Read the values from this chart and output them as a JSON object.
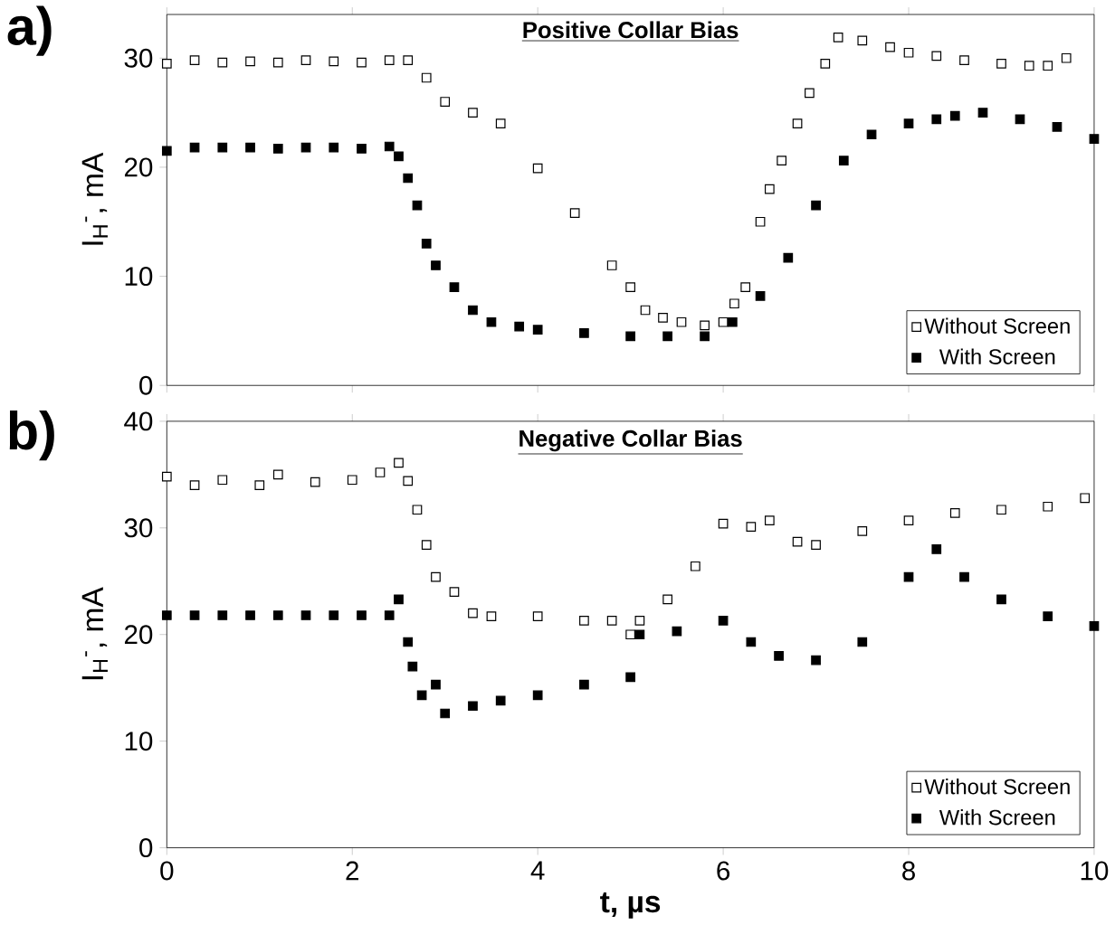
{
  "chart_data": [
    {
      "type": "scatter",
      "title": "Positive Collar Bias",
      "ylabel": "I$_{H}$$^{-}$, mA",
      "annotations": [
        "a)"
      ],
      "xlim": [
        0,
        10
      ],
      "xticks": [
        0,
        2,
        4,
        6,
        8,
        10
      ],
      "ylim": [
        0,
        34
      ],
      "yticks": [
        0,
        10,
        20,
        30
      ],
      "tick_labels": "y",
      "legend": "bottom right",
      "marker": "square",
      "series": [
        {
          "name": "Without Screen",
          "color": "#ffffff",
          "x": [
            0,
            0.3,
            0.6,
            0.9,
            1.2,
            1.5,
            1.8,
            2.1,
            2.4,
            2.6,
            2.8,
            3.0,
            3.3,
            3.6,
            4.0,
            4.4,
            4.8,
            5.0,
            5.16,
            5.35,
            5.55,
            5.8,
            6.0,
            6.12,
            6.24,
            6.4,
            6.5,
            6.63,
            6.8,
            6.93,
            7.1,
            7.24,
            7.5,
            7.8,
            8.0,
            8.3,
            8.6,
            9.0,
            9.3,
            9.5,
            9.7
          ],
          "values": [
            29.5,
            29.8,
            29.6,
            29.7,
            29.6,
            29.8,
            29.7,
            29.6,
            29.8,
            29.8,
            28.2,
            26,
            25,
            24,
            19.9,
            15.8,
            11,
            9,
            6.9,
            6.2,
            5.8,
            5.5,
            5.8,
            7.5,
            9,
            15,
            18,
            20.6,
            24,
            26.8,
            29.5,
            31.9,
            31.6,
            31,
            30.5,
            30.2,
            29.8,
            29.5,
            29.3,
            29.3,
            30
          ]
        },
        {
          "name": "With Screen",
          "color": "#000000",
          "x": [
            0,
            0.3,
            0.6,
            0.9,
            1.2,
            1.5,
            1.8,
            2.1,
            2.4,
            2.5,
            2.6,
            2.7,
            2.8,
            2.9,
            3.1,
            3.3,
            3.5,
            3.8,
            4.0,
            4.5,
            5.0,
            5.4,
            5.8,
            6.1,
            6.4,
            6.7,
            7.0,
            7.3,
            7.6,
            8.0,
            8.3,
            8.5,
            8.8,
            9.2,
            9.6,
            10.0
          ],
          "values": [
            21.5,
            21.8,
            21.8,
            21.8,
            21.7,
            21.8,
            21.8,
            21.7,
            21.9,
            21,
            19,
            16.5,
            13,
            11,
            9,
            6.9,
            5.8,
            5.4,
            5.1,
            4.8,
            4.5,
            4.5,
            4.5,
            5.8,
            8.2,
            11.7,
            16.5,
            20.6,
            23,
            24,
            24.4,
            24.7,
            25,
            24.4,
            23.7,
            22.6
          ]
        }
      ]
    },
    {
      "type": "scatter",
      "title": "Negative Collar Bias",
      "xlabel": "t,  µs",
      "ylabel": "I$_{H}$$^{-}$, mA",
      "annotations": [
        "b)"
      ],
      "xlim": [
        0,
        10
      ],
      "xticks": [
        0,
        2,
        4,
        6,
        8,
        10
      ],
      "ylim": [
        0,
        40
      ],
      "yticks": [
        0,
        10,
        20,
        30,
        40
      ],
      "legend": "bottom right",
      "marker": "square",
      "series": [
        {
          "name": "Without Screen",
          "color": "#ffffff",
          "x": [
            0,
            0.3,
            0.6,
            1.0,
            1.2,
            1.6,
            2.0,
            2.3,
            2.5,
            2.6,
            2.7,
            2.8,
            2.9,
            3.1,
            3.3,
            3.5,
            4.0,
            4.5,
            4.8,
            5.0,
            5.1,
            5.4,
            5.7,
            6.0,
            6.3,
            6.5,
            6.8,
            7.0,
            7.5,
            8.0,
            8.5,
            9.0,
            9.5,
            9.9
          ],
          "values": [
            34.8,
            34,
            34.5,
            34,
            35,
            34.3,
            34.5,
            35.2,
            36.1,
            34.4,
            31.7,
            28.4,
            25.4,
            24,
            22,
            21.7,
            21.7,
            21.3,
            21.3,
            20,
            21.3,
            23.3,
            26.4,
            30.4,
            30.1,
            30.7,
            28.7,
            28.4,
            29.7,
            30.7,
            31.4,
            31.7,
            32,
            32.8
          ]
        },
        {
          "name": "With Screen",
          "color": "#000000",
          "x": [
            0,
            0.3,
            0.6,
            0.9,
            1.2,
            1.5,
            1.8,
            2.1,
            2.4,
            2.5,
            2.6,
            2.65,
            2.75,
            2.9,
            3.0,
            3.3,
            3.6,
            4.0,
            4.5,
            5.0,
            5.1,
            5.5,
            6.0,
            6.3,
            6.6,
            7.0,
            7.5,
            8.0,
            8.3,
            8.6,
            9.0,
            9.5,
            10.0
          ],
          "values": [
            21.8,
            21.8,
            21.8,
            21.8,
            21.8,
            21.8,
            21.8,
            21.8,
            21.8,
            23.3,
            19.3,
            17,
            14.3,
            15.3,
            12.6,
            13.3,
            13.8,
            14.3,
            15.3,
            16,
            20,
            20.3,
            21.3,
            19.3,
            18,
            17.6,
            19.3,
            25.4,
            28,
            25.4,
            23.3,
            21.7,
            20.8
          ]
        }
      ]
    }
  ]
}
